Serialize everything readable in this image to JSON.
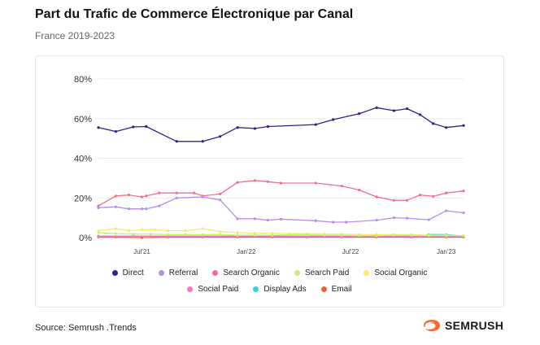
{
  "header": {
    "title": "Part du Trafic de Commerce Électronique par Canal",
    "subtitle": "France 2019-2023"
  },
  "footer": {
    "source": "Source: Semrush .Trends",
    "brand": "SEMRUSH",
    "brand_color": "#ff642d"
  },
  "chart_data": {
    "type": "line",
    "title": "Part du Trafic de Commerce Électronique par Canal",
    "subtitle": "France 2019-2023",
    "xlabel": "",
    "ylabel": "",
    "ylim": [
      0,
      80
    ],
    "yticks": [
      0,
      20,
      40,
      60,
      80
    ],
    "ytick_labels": [
      "0%",
      "20%",
      "40%",
      "60%",
      "80%"
    ],
    "xlim": [
      0,
      42
    ],
    "xticks": [
      5,
      17,
      29,
      40
    ],
    "xtick_labels": [
      "Jul'21",
      "Jan'22",
      "Jul'22",
      "Jan'23"
    ],
    "grid": true,
    "legend_position": "bottom",
    "series": [
      {
        "name": "Direct",
        "color": "#3b1c8c",
        "x": [
          0,
          2,
          4,
          5.5,
          9,
          12,
          14,
          16,
          18,
          19.5,
          25,
          27,
          30,
          32,
          34,
          35.5,
          37,
          38.5,
          40,
          42
        ],
        "values": [
          55.5,
          53.5,
          55.8,
          56,
          48.5,
          48.5,
          51,
          55.5,
          55,
          56,
          57,
          59.5,
          62.5,
          65.5,
          64,
          65,
          62,
          57.5,
          55.5,
          56.5
        ]
      },
      {
        "name": "Referral",
        "color": "#b58cf0",
        "x": [
          0,
          2,
          3.5,
          5,
          5.5,
          7,
          9,
          12,
          14,
          16,
          18,
          19.5,
          21,
          25,
          27,
          28.5,
          32,
          34,
          35.5,
          38,
          40,
          42
        ],
        "values": [
          15,
          15.5,
          14.5,
          14.5,
          14.5,
          16,
          20,
          20.5,
          19,
          9.5,
          9.5,
          8.8,
          9.3,
          8.5,
          7.8,
          7.8,
          8.8,
          10,
          9.8,
          9,
          13.5,
          12.5
        ]
      },
      {
        "name": "Search Organic",
        "color": "#f0708a",
        "x": [
          0,
          2,
          3.5,
          5,
          5.5,
          7,
          9,
          11,
          12,
          14,
          16,
          18,
          19.5,
          21,
          25,
          28,
          30,
          32,
          34,
          35.5,
          37,
          38.5,
          40,
          42
        ],
        "values": [
          16,
          21,
          21.5,
          20.5,
          21,
          22.5,
          22.5,
          22.5,
          21,
          22,
          27.8,
          28.8,
          28.2,
          27.5,
          27.5,
          26,
          24,
          20.5,
          18.8,
          18.8,
          21.5,
          20.8,
          22.5,
          23.5
        ]
      },
      {
        "name": "Search Paid",
        "color": "#c8f06e",
        "x": [
          0,
          2,
          4,
          6,
          8,
          10,
          12,
          14,
          16,
          18,
          20,
          22,
          24,
          26,
          28,
          30,
          32,
          34,
          36,
          38,
          40,
          42
        ],
        "values": [
          2.5,
          2,
          1.8,
          1.8,
          1.5,
          1.5,
          1.5,
          1.5,
          1.2,
          1.2,
          1.2,
          1.5,
          1.5,
          1.2,
          1.2,
          1.0,
          1.0,
          1.2,
          1.2,
          1.0,
          1.0,
          1.0
        ]
      },
      {
        "name": "Social Organic",
        "color": "#f5ec6e",
        "x": [
          0,
          2,
          3.5,
          5,
          6.5,
          8,
          10,
          12,
          14,
          16,
          18,
          20,
          22,
          24,
          26,
          28,
          30,
          32,
          34,
          36,
          38,
          40,
          42
        ],
        "values": [
          3.5,
          4.5,
          3.5,
          4,
          4,
          3.5,
          3.5,
          4.5,
          3,
          2.5,
          2.2,
          2.2,
          2,
          2,
          1.8,
          1.8,
          1.5,
          1.5,
          1.5,
          1.5,
          1.2,
          1.2,
          1
        ]
      },
      {
        "name": "Social Paid",
        "color": "#f27ac0",
        "x": [
          0,
          4,
          8,
          12,
          16,
          20,
          24,
          28,
          32,
          36,
          40,
          42
        ],
        "values": [
          0.6,
          0.6,
          0.6,
          0.6,
          0.6,
          0.6,
          0.6,
          0.6,
          0.6,
          0.6,
          0.6,
          0.6
        ]
      },
      {
        "name": "Display Ads",
        "color": "#2ad8d8",
        "x": [
          0,
          4,
          8,
          12,
          16,
          20,
          24,
          28,
          32,
          36,
          37,
          38,
          40,
          42
        ],
        "values": [
          0.8,
          0.8,
          0.8,
          0.8,
          0.8,
          0.8,
          0.8,
          0.8,
          0.8,
          0.8,
          0.5,
          1.5,
          1.5,
          0.8
        ]
      },
      {
        "name": "Email",
        "color": "#f0603a",
        "x": [
          0,
          2,
          5,
          8,
          12,
          16,
          20,
          24,
          28,
          32,
          36,
          40,
          42
        ],
        "values": [
          0.3,
          0.3,
          0,
          0.3,
          0.3,
          0.3,
          0.3,
          0.3,
          0.3,
          0.3,
          0.3,
          0.3,
          0.3
        ]
      }
    ]
  }
}
